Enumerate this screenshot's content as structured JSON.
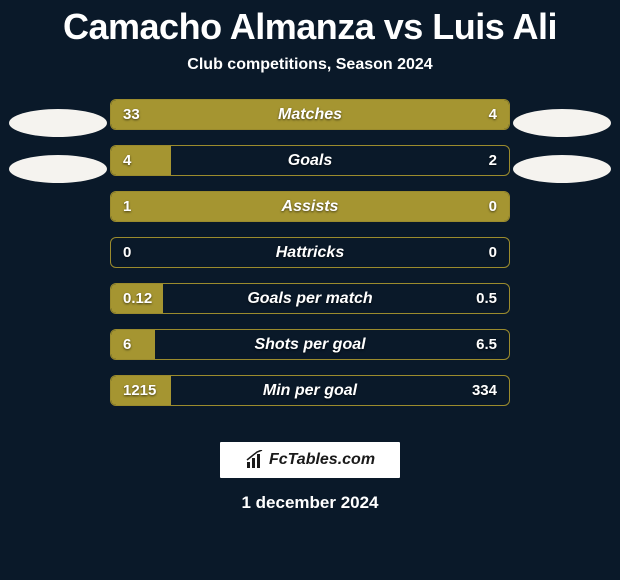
{
  "title": "Camacho Almanza vs Luis Ali",
  "subtitle": "Club competitions, Season 2024",
  "footer_brand": "FcTables.com",
  "date": "1 december 2024",
  "colors": {
    "background": "#0a1929",
    "bar_fill": "#a59531",
    "bar_border": "#9b8b2d",
    "text": "#ffffff",
    "ellipse": "#f5f3ef"
  },
  "rows": [
    {
      "label": "Matches",
      "left": "33",
      "right": "4",
      "left_pct": 72,
      "right_pct": 28
    },
    {
      "label": "Goals",
      "left": "4",
      "right": "2",
      "left_pct": 15,
      "right_pct": 0
    },
    {
      "label": "Assists",
      "left": "1",
      "right": "0",
      "left_pct": 100,
      "right_pct": 0
    },
    {
      "label": "Hattricks",
      "left": "0",
      "right": "0",
      "left_pct": 0,
      "right_pct": 0
    },
    {
      "label": "Goals per match",
      "left": "0.12",
      "right": "0.5",
      "left_pct": 13,
      "right_pct": 0
    },
    {
      "label": "Shots per goal",
      "left": "6",
      "right": "6.5",
      "left_pct": 11,
      "right_pct": 0
    },
    {
      "label": "Min per goal",
      "left": "1215",
      "right": "334",
      "left_pct": 15,
      "right_pct": 0
    }
  ]
}
